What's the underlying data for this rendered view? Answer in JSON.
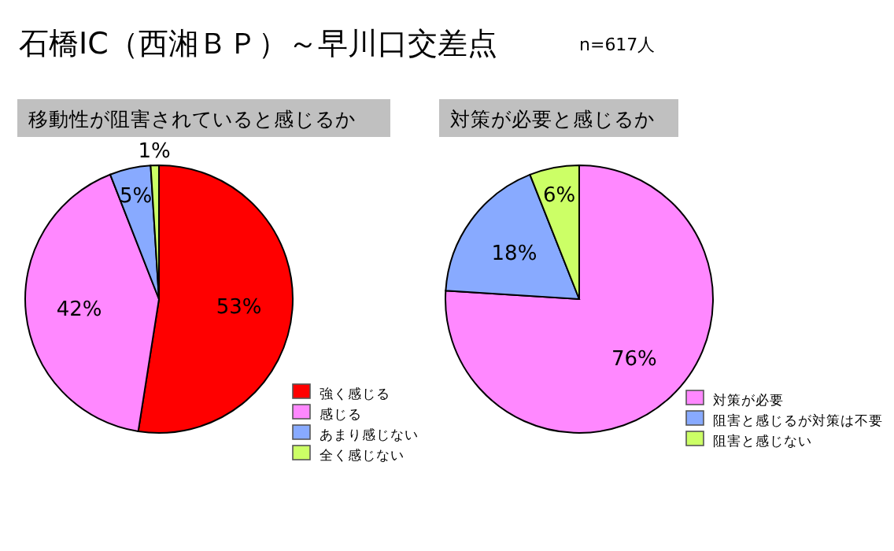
{
  "chart_data": [
    {
      "type": "pie",
      "title": "石橋IC（西湘ＢＰ）～早川口交差点",
      "subtitle": "移動性が阻害されていると感じるか",
      "annotations": [
        "n=617人"
      ],
      "categories": [
        "強く感じる",
        "感じる",
        "あまり感じない",
        "全く感じない"
      ],
      "values": [
        53,
        42,
        5,
        1
      ],
      "value_labels": [
        "53%",
        "42%",
        "5%",
        "1%"
      ],
      "colors": [
        "#ff0000",
        "#ff88ff",
        "#88aaff",
        "#ccff66"
      ],
      "legend": "bottom right"
    },
    {
      "type": "pie",
      "title": "対策が必要と感じるか",
      "categories": [
        "対策が必要",
        "阻害と感じるが対策は不要",
        "阻害と感じない"
      ],
      "values": [
        76,
        18,
        6
      ],
      "value_labels": [
        "76%",
        "18%",
        "6%"
      ],
      "colors": [
        "#ff88ff",
        "#88aaff",
        "#ccff66"
      ],
      "legend": "bottom right"
    }
  ]
}
